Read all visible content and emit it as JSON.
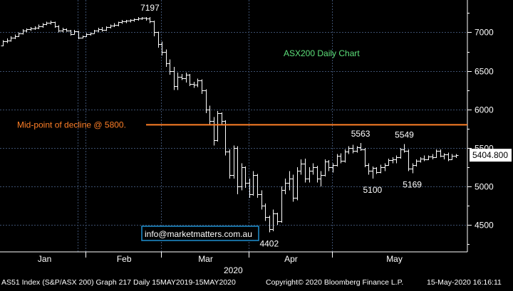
{
  "chart_data": {
    "type": "bar",
    "subtype": "ohlc",
    "title": "ASX200 Daily Chart",
    "ylim": [
      4150,
      7420
    ],
    "y_ticks": [
      4500,
      5000,
      5500,
      6000,
      6500,
      7000
    ],
    "y_tick_labels": [
      "4500",
      "5000",
      "5500",
      "6000",
      "6500",
      "7000"
    ],
    "x_tick_labels": [
      "Jan",
      "Feb",
      "Mar",
      "Apr",
      "May"
    ],
    "x_year_label": "2020",
    "grid": true,
    "last_price": "5404.800",
    "horizontal_line": {
      "value": 5800,
      "label": "Mid-point of decline @ 5800.",
      "color": "#ff7f27"
    },
    "annotations": [
      {
        "text": "7197",
        "bar": 37,
        "value": 7197,
        "pos": "above"
      },
      {
        "text": "5563",
        "bar": 90,
        "value": 5563,
        "pos": "above"
      },
      {
        "text": "5549",
        "bar": 101,
        "value": 5549,
        "pos": "above"
      },
      {
        "text": "5100",
        "bar": 93,
        "value": 5100,
        "pos": "below"
      },
      {
        "text": "5169",
        "bar": 103,
        "value": 5169,
        "pos": "below"
      },
      {
        "text": "4402",
        "bar": 67,
        "value": 4402,
        "pos": "below"
      }
    ],
    "bars": [
      [
        6830,
        6900,
        6820,
        6880
      ],
      [
        6880,
        6920,
        6860,
        6890
      ],
      [
        6890,
        6950,
        6880,
        6930
      ],
      [
        6930,
        6970,
        6910,
        6950
      ],
      [
        6950,
        7000,
        6940,
        6990
      ],
      [
        6990,
        7040,
        6970,
        7020
      ],
      [
        7020,
        7050,
        7000,
        7040
      ],
      [
        7040,
        7070,
        7020,
        7050
      ],
      [
        7050,
        7080,
        7030,
        7060
      ],
      [
        7060,
        7100,
        7040,
        7080
      ],
      [
        7080,
        7120,
        7060,
        7110
      ],
      [
        7110,
        7140,
        7090,
        7120
      ],
      [
        7120,
        7150,
        7100,
        7130
      ],
      [
        7130,
        7140,
        7060,
        7080
      ],
      [
        7080,
        7090,
        7000,
        7020
      ],
      [
        7020,
        7060,
        7000,
        7040
      ],
      [
        7040,
        7050,
        7010,
        7020
      ],
      [
        7020,
        7030,
        6960,
        6980
      ],
      [
        6980,
        7030,
        6970,
        7010
      ],
      [
        7010,
        7020,
        6910,
        6930
      ],
      [
        6930,
        6960,
        6920,
        6950
      ],
      [
        6950,
        6990,
        6940,
        6980
      ],
      [
        6980,
        7000,
        6960,
        6990
      ],
      [
        6990,
        7030,
        6980,
        7020
      ],
      [
        7020,
        7060,
        7000,
        7040
      ],
      [
        7040,
        7070,
        7010,
        7030
      ],
      [
        7030,
        7080,
        7020,
        7070
      ],
      [
        7070,
        7100,
        7050,
        7090
      ],
      [
        7090,
        7120,
        7070,
        7100
      ],
      [
        7100,
        7140,
        7080,
        7130
      ],
      [
        7130,
        7160,
        7110,
        7140
      ],
      [
        7140,
        7160,
        7120,
        7150
      ],
      [
        7150,
        7170,
        7130,
        7160
      ],
      [
        7160,
        7180,
        7140,
        7170
      ],
      [
        7170,
        7200,
        7150,
        7180
      ],
      [
        7180,
        7200,
        7160,
        7190
      ],
      [
        7190,
        7200,
        7150,
        7180
      ],
      [
        7180,
        7197,
        7120,
        7140
      ],
      [
        7140,
        7150,
        6950,
        7000
      ],
      [
        7000,
        7010,
        6800,
        6850
      ],
      [
        6850,
        6880,
        6700,
        6750
      ],
      [
        6750,
        6780,
        6550,
        6600
      ],
      [
        6600,
        6650,
        6450,
        6500
      ],
      [
        6500,
        6550,
        6250,
        6300
      ],
      [
        6300,
        6480,
        6250,
        6420
      ],
      [
        6420,
        6460,
        6380,
        6400
      ],
      [
        6400,
        6480,
        6350,
        6450
      ],
      [
        6450,
        6460,
        6300,
        6330
      ],
      [
        6330,
        6360,
        6280,
        6320
      ],
      [
        6320,
        6400,
        6290,
        6380
      ],
      [
        6380,
        6390,
        6200,
        6250
      ],
      [
        6250,
        6260,
        5950,
        6000
      ],
      [
        6000,
        6050,
        5800,
        5850
      ],
      [
        5850,
        5900,
        5530,
        5600
      ],
      [
        5600,
        5980,
        5580,
        5950
      ],
      [
        5950,
        5960,
        5800,
        5850
      ],
      [
        5850,
        5860,
        5400,
        5450
      ],
      [
        5450,
        5480,
        5100,
        5150
      ],
      [
        5150,
        5530,
        5100,
        5500
      ],
      [
        5500,
        5520,
        4900,
        5000
      ],
      [
        5000,
        5300,
        4950,
        5250
      ],
      [
        5250,
        5260,
        4980,
        5050
      ],
      [
        5050,
        5100,
        4850,
        4900
      ],
      [
        4900,
        5200,
        4880,
        5150
      ],
      [
        5150,
        5160,
        4850,
        4900
      ],
      [
        4900,
        4950,
        4700,
        4750
      ],
      [
        4750,
        4780,
        4550,
        4600
      ],
      [
        4600,
        4620,
        4402,
        4450
      ],
      [
        4450,
        4700,
        4420,
        4650
      ],
      [
        4650,
        4660,
        4500,
        4550
      ],
      [
        4550,
        5000,
        4530,
        4950
      ],
      [
        4950,
        5100,
        4900,
        5050
      ],
      [
        5050,
        5200,
        4950,
        5100
      ],
      [
        5100,
        5150,
        4800,
        4850
      ],
      [
        4850,
        5250,
        4820,
        5200
      ],
      [
        5200,
        5350,
        5150,
        5300
      ],
      [
        5300,
        5360,
        5050,
        5100
      ],
      [
        5100,
        5250,
        5050,
        5200
      ],
      [
        5200,
        5300,
        5150,
        5250
      ],
      [
        5250,
        5270,
        5050,
        5100
      ],
      [
        5100,
        5200,
        5000,
        5150
      ],
      [
        5150,
        5350,
        5130,
        5320
      ],
      [
        5320,
        5340,
        5200,
        5250
      ],
      [
        5250,
        5300,
        5180,
        5280
      ],
      [
        5280,
        5420,
        5260,
        5400
      ],
      [
        5400,
        5430,
        5300,
        5330
      ],
      [
        5330,
        5480,
        5310,
        5450
      ],
      [
        5450,
        5520,
        5420,
        5500
      ],
      [
        5500,
        5540,
        5430,
        5460
      ],
      [
        5460,
        5520,
        5440,
        5510
      ],
      [
        5510,
        5563,
        5460,
        5480
      ],
      [
        5480,
        5500,
        5250,
        5280
      ],
      [
        5280,
        5300,
        5150,
        5200
      ],
      [
        5200,
        5260,
        5100,
        5240
      ],
      [
        5240,
        5250,
        5160,
        5180
      ],
      [
        5180,
        5280,
        5170,
        5250
      ],
      [
        5250,
        5300,
        5200,
        5280
      ],
      [
        5280,
        5360,
        5270,
        5340
      ],
      [
        5340,
        5380,
        5300,
        5350
      ],
      [
        5350,
        5400,
        5300,
        5380
      ],
      [
        5380,
        5500,
        5360,
        5480
      ],
      [
        5480,
        5549,
        5440,
        5460
      ],
      [
        5460,
        5480,
        5200,
        5230
      ],
      [
        5230,
        5300,
        5169,
        5280
      ],
      [
        5280,
        5350,
        5260,
        5330
      ],
      [
        5330,
        5380,
        5310,
        5360
      ],
      [
        5360,
        5400,
        5330,
        5350
      ],
      [
        5350,
        5400,
        5340,
        5390
      ],
      [
        5390,
        5420,
        5350,
        5380
      ],
      [
        5380,
        5480,
        5370,
        5460
      ],
      [
        5460,
        5480,
        5380,
        5400
      ],
      [
        5400,
        5430,
        5350,
        5420
      ],
      [
        5420,
        5440,
        5330,
        5350
      ],
      [
        5350,
        5420,
        5340,
        5400
      ],
      [
        5400,
        5420,
        5370,
        5405
      ]
    ]
  },
  "footer": {
    "left": "AS51 Index (S&P/ASX 200) Graph 217  Daily 15MAY2019-15MAY2020",
    "center": "Copyright© 2020 Bloomberg Finance L.P.",
    "right": "15-May-2020 16:16:11"
  },
  "watermark": "info@marketmatters.com.au",
  "colors": {
    "background": "#000000",
    "bars": "#ffffff",
    "grid": "#3c4f6e",
    "title": "#5de07a",
    "level_line": "#ff7f27",
    "price_box": "#ffffff",
    "watermark_border": "#1f8fd0"
  }
}
